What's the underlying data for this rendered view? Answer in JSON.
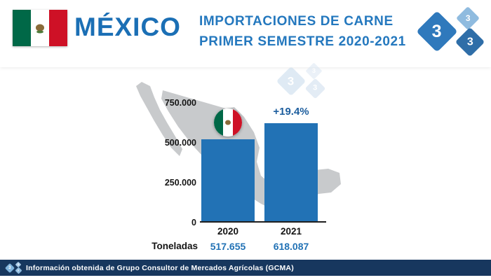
{
  "header": {
    "title": "MÉXICO",
    "subtitle_line1": "IMPORTACIONES  DE CARNE",
    "subtitle_line2": "PRIMER SEMESTRE  2020-2021"
  },
  "logo": {
    "digits": [
      "3",
      "3",
      "3"
    ]
  },
  "chart_data": {
    "type": "bar",
    "title": "IMPORTACIONES DE CARNE PRIMER SEMESTRE 2020-2021",
    "categories": [
      "2020",
      "2021"
    ],
    "values": [
      517655,
      618087
    ],
    "value_labels": [
      "517.655",
      "618.087"
    ],
    "unit_label": "Toneladas",
    "annotation": "+19.4%",
    "ylim": [
      0,
      750000
    ],
    "yticks": [
      {
        "value": 750000,
        "label": "750.000"
      },
      {
        "value": 500000,
        "label": "500.000"
      },
      {
        "value": 250000,
        "label": "250.000"
      },
      {
        "value": 0,
        "label": "0"
      }
    ],
    "bar_color": "#2272B5",
    "grid": false,
    "legend": "none"
  },
  "footer": {
    "text": "Información obtenida de  Grupo Consultor de Mercados Agrícolas (GCMA)"
  },
  "colors": {
    "accent_blue": "#1B6FB5",
    "subtitle_blue": "#2478BE",
    "bar_blue": "#2272B5",
    "annotation_navy": "#1D5E9E",
    "footer_navy": "#17375E",
    "map_gray": "#C8CACC",
    "flag_green": "#006847",
    "flag_red": "#CE1126"
  }
}
